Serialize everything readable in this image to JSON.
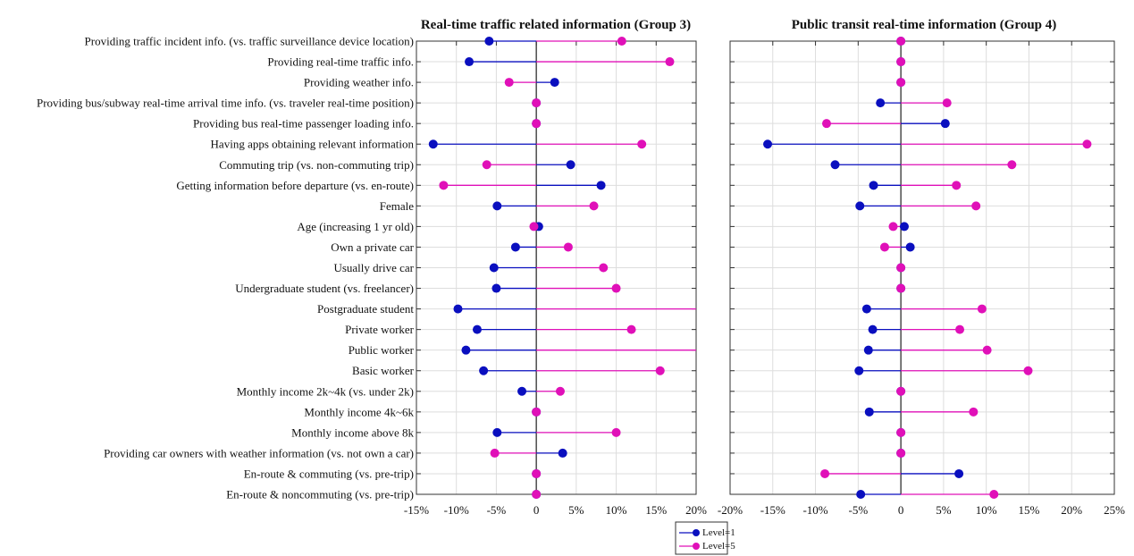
{
  "chart_data": [
    {
      "type": "dumbbell",
      "title": "Real-time traffic related information (Group 3)",
      "xlim": [
        -15,
        20
      ],
      "xticks": [
        "-15%",
        "-10%",
        "-5%",
        "0",
        "5%",
        "10%",
        "15%",
        "20%"
      ],
      "xtick_values": [
        -15,
        -10,
        -5,
        0,
        5,
        10,
        15,
        20
      ],
      "grid": true,
      "categories": [
        "Providing traffic incident info. (vs. traffic surveillance device location)",
        "Providing  real-time traffic info.",
        "Providing weather info.",
        "Providing bus/subway real-time arrival time info. (vs. traveler real-time position)",
        "Providing bus real-time passenger loading info.",
        "Having apps obtaining relevant information",
        "Commuting trip (vs. non-commuting trip)",
        "Getting information before departure (vs. en-route)",
        "Female",
        "Age (increasing 1 yr old)",
        "Own a private car",
        "Usually drive car",
        "Undergraduate student (vs. freelancer)",
        "Postgraduate student",
        "Private worker",
        "Public worker",
        "Basic worker",
        "Monthly income 2k~4k (vs. under 2k)",
        "Monthly income 4k~6k",
        "Monthly income above 8k",
        "Providing car owners with weather information (vs. not own a car)",
        "En-route & commuting (vs. pre-trip)",
        "En-route & noncommuting (vs. pre-trip)"
      ],
      "series": [
        {
          "name": "Level=1",
          "color": "#0a0fbf",
          "values": [
            -5.9,
            -8.4,
            2.3,
            0,
            0,
            -12.9,
            4.3,
            8.1,
            -4.9,
            0.3,
            -2.6,
            -5.3,
            -5.0,
            -9.8,
            -7.4,
            -8.8,
            -6.6,
            -1.8,
            0,
            -4.9,
            3.3,
            0,
            0
          ]
        },
        {
          "name": "Level=5",
          "color": "#e010b8",
          "values": [
            10.7,
            16.7,
            -3.4,
            0,
            0,
            13.2,
            -6.2,
            -11.6,
            7.2,
            -0.3,
            4.0,
            8.4,
            10.0,
            21,
            11.9,
            21,
            15.5,
            3.0,
            0,
            10.0,
            -5.2,
            0,
            0
          ]
        }
      ]
    },
    {
      "type": "dumbbell",
      "title": "Public transit real-time information (Group 4)",
      "xlim": [
        -20,
        25
      ],
      "xticks": [
        "-20%",
        "-15%",
        "-10%",
        "-5%",
        "0",
        "5%",
        "10%",
        "15%",
        "20%",
        "25%"
      ],
      "xtick_values": [
        -20,
        -15,
        -10,
        -5,
        0,
        5,
        10,
        15,
        20,
        25
      ],
      "grid": true,
      "series": [
        {
          "name": "Level=1",
          "color": "#0a0fbf",
          "values": [
            0,
            0,
            0,
            -2.4,
            5.2,
            -15.6,
            -7.7,
            -3.2,
            -4.8,
            0.4,
            1.1,
            0,
            0,
            -4.0,
            -3.3,
            -3.8,
            -4.9,
            0,
            -3.7,
            0,
            0,
            6.8,
            -4.7
          ]
        },
        {
          "name": "Level=5",
          "color": "#e010b8",
          "values": [
            0,
            0,
            0,
            5.4,
            -8.7,
            21.8,
            13.0,
            6.5,
            8.8,
            -0.9,
            -1.9,
            0,
            0,
            9.5,
            6.9,
            10.1,
            14.9,
            0,
            8.5,
            0,
            0,
            -8.9,
            10.9
          ]
        }
      ]
    }
  ],
  "legend": {
    "placement": "bottom-center",
    "items": [
      "Level=1",
      "Level=5"
    ]
  }
}
